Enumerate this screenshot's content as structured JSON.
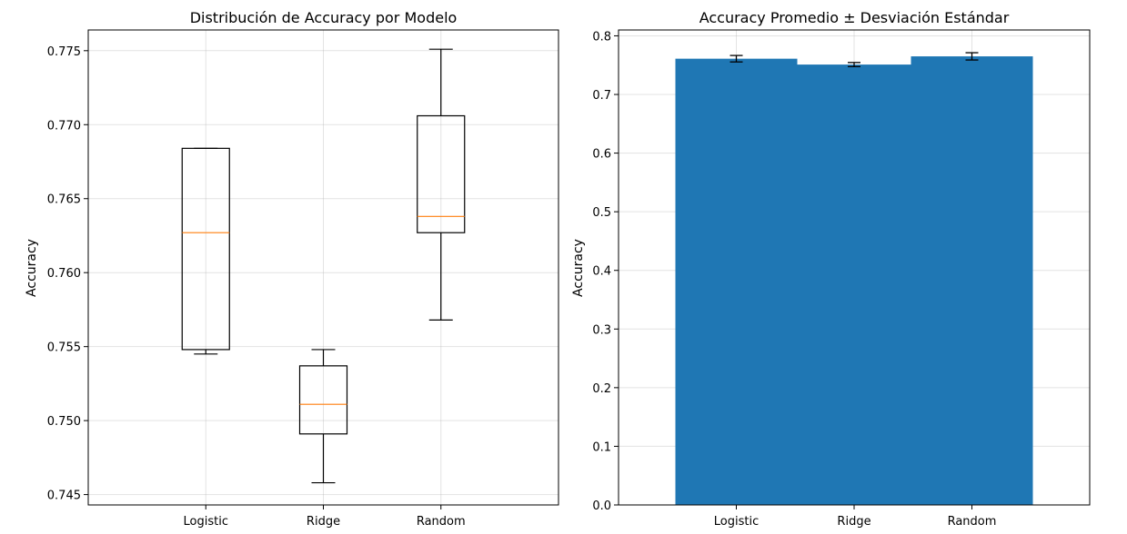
{
  "chart_data": [
    {
      "type": "box",
      "title": "Distribución de Accuracy por Modelo",
      "xlabel": "",
      "ylabel": "Accuracy",
      "ylim": [
        0.7443,
        0.7764
      ],
      "yticks": [
        0.745,
        0.75,
        0.755,
        0.76,
        0.765,
        0.77,
        0.775
      ],
      "ytick_labels": [
        "0.745",
        "0.750",
        "0.755",
        "0.760",
        "0.765",
        "0.770",
        "0.775"
      ],
      "grid": true,
      "categories": [
        "Logistic",
        "Ridge",
        "Random"
      ],
      "boxes": [
        {
          "whisker_low": 0.7545,
          "q1": 0.7548,
          "median": 0.7627,
          "q3": 0.7684,
          "whisker_high": 0.7684
        },
        {
          "whisker_low": 0.7458,
          "q1": 0.7491,
          "median": 0.7511,
          "q3": 0.7537,
          "whisker_high": 0.7548
        },
        {
          "whisker_low": 0.7568,
          "q1": 0.7627,
          "median": 0.7638,
          "q3": 0.7706,
          "whisker_high": 0.7751
        }
      ],
      "colors": {
        "box": "#000000",
        "median": "#ff7f0e"
      }
    },
    {
      "type": "bar",
      "title": "Accuracy Promedio ± Desviación Estándar",
      "xlabel": "",
      "ylabel": "Accuracy",
      "ylim": [
        0,
        0.81
      ],
      "yticks": [
        0,
        0.1,
        0.2,
        0.3,
        0.4,
        0.5,
        0.6,
        0.7,
        0.8
      ],
      "ytick_labels": [
        "0.0",
        "0.1",
        "0.2",
        "0.3",
        "0.4",
        "0.5",
        "0.6",
        "0.7",
        "0.8"
      ],
      "grid": true,
      "categories": [
        "Logistic",
        "Ridge",
        "Random"
      ],
      "values": [
        0.761,
        0.751,
        0.765
      ],
      "errors": [
        0.0055,
        0.0035,
        0.0062
      ],
      "colors": {
        "bar": "#1f77b4",
        "error": "#000000"
      }
    }
  ]
}
